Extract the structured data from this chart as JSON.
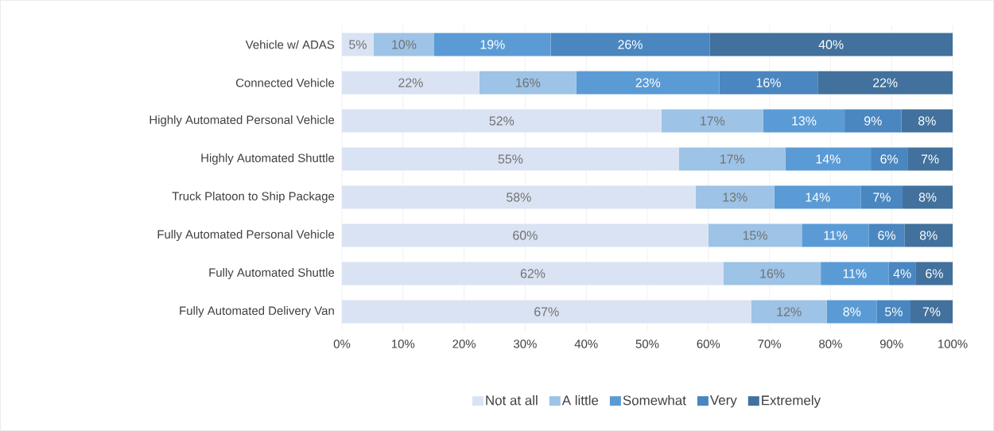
{
  "chart_data": {
    "type": "bar",
    "orientation": "horizontal",
    "stacked": true,
    "categories": [
      "Vehicle w/ ADAS",
      "Connected Vehicle",
      "Highly Automated Personal Vehicle",
      "Highly Automated Shuttle",
      "Truck Platoon to Ship Package",
      "Fully Automated Personal Vehicle",
      "Fully Automated Shuttle",
      "Fully Automated Delivery Van"
    ],
    "series": [
      {
        "name": "Not at all",
        "color": "#dae3f3",
        "values": [
          5.2,
          22.5,
          52.3,
          55.2,
          57.9,
          60.0,
          62.5,
          67.0
        ],
        "value_labels": [
          "5%",
          "22%",
          "52%",
          "55%",
          "58%",
          "60%",
          "62%",
          "67%"
        ]
      },
      {
        "name": "A little",
        "color": "#9dc3e6",
        "values": [
          9.9,
          15.9,
          16.7,
          17.4,
          12.9,
          15.3,
          15.9,
          12.4
        ],
        "value_labels": [
          "10%",
          "16%",
          "17%",
          "17%",
          "13%",
          "15%",
          "16%",
          "12%"
        ]
      },
      {
        "name": "Somewhat",
        "color": "#5b9bd5",
        "values": [
          19.1,
          23.4,
          13.3,
          14.0,
          14.2,
          11.0,
          11.1,
          8.2
        ],
        "value_labels": [
          "19%",
          "23%",
          "13%",
          "14%",
          "14%",
          "11%",
          "11%",
          "8%"
        ]
      },
      {
        "name": "Very",
        "color": "#4a86bf",
        "values": [
          26.0,
          16.1,
          9.3,
          6.0,
          6.8,
          5.8,
          4.5,
          5.5
        ],
        "value_labels": [
          "26%",
          "16%",
          "9%",
          "6%",
          "7%",
          "6%",
          "4%",
          "5%"
        ]
      },
      {
        "name": "Extremely",
        "color": "#41719c",
        "values": [
          39.8,
          22.1,
          8.4,
          7.4,
          8.2,
          7.9,
          6.0,
          6.9
        ],
        "value_labels": [
          "40%",
          "22%",
          "8%",
          "7%",
          "8%",
          "8%",
          "6%",
          "7%"
        ]
      }
    ],
    "xlim": [
      0,
      100
    ],
    "xticks": [
      {
        "value": 0,
        "label": "0%"
      },
      {
        "value": 10,
        "label": "10%"
      },
      {
        "value": 20,
        "label": "20%"
      },
      {
        "value": 30,
        "label": "30%"
      },
      {
        "value": 40,
        "label": "40%"
      },
      {
        "value": 50,
        "label": "50%"
      },
      {
        "value": 60,
        "label": "60%"
      },
      {
        "value": 70,
        "label": "70%"
      },
      {
        "value": 80,
        "label": "80%"
      },
      {
        "value": 90,
        "label": "90%"
      },
      {
        "value": 100,
        "label": "100%"
      }
    ],
    "grid": "x",
    "legend": "bottom"
  }
}
